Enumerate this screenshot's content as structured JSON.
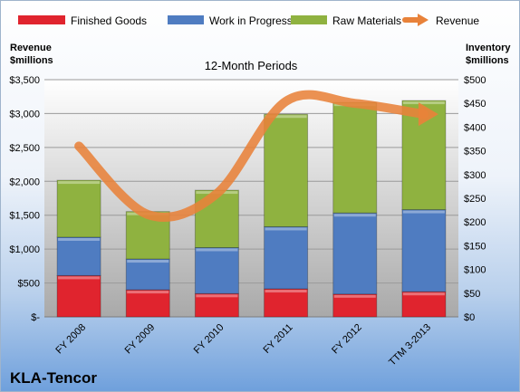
{
  "chart_data": {
    "type": "bar",
    "title": "12-Month Periods",
    "categories": [
      "FY 2008",
      "FY 2009",
      "FY 2010",
      "FY 2011",
      "FY 2012",
      "TTM 3-2013"
    ],
    "stacked": true,
    "left_axis": {
      "label_line1": "Revenue",
      "label_line2": "$millions",
      "ylim": [
        0,
        3500
      ],
      "ticks": [
        "$-",
        "$500",
        "$1,000",
        "$1,500",
        "$2,000",
        "$2,500",
        "$3,000",
        "$3,500"
      ]
    },
    "right_axis": {
      "label_line1": "Inventory",
      "label_line2": "$millions",
      "ylim": [
        0,
        500
      ],
      "ticks": [
        "$0",
        "$50",
        "$100",
        "$150",
        "$200",
        "$250",
        "$300",
        "$350",
        "$400",
        "$450",
        "$500"
      ]
    },
    "series": [
      {
        "name": "Finished Goods",
        "axis": "right",
        "color": "#e0242e",
        "values": [
          87,
          57,
          49,
          59,
          48,
          53
        ]
      },
      {
        "name": "Work in Progress",
        "axis": "right",
        "color": "#4f7cc1",
        "values": [
          81,
          65,
          97,
          131,
          171,
          173
        ]
      },
      {
        "name": "Raw Materials",
        "axis": "right",
        "color": "#8fb240",
        "values": [
          120,
          100,
          121,
          237,
          233,
          230
        ]
      },
      {
        "name": "Revenue",
        "axis": "left",
        "type": "line",
        "color": "#e8823a",
        "values": [
          2520,
          1510,
          1820,
          3180,
          3150,
          2990
        ]
      }
    ],
    "grid": true,
    "legend": "top"
  },
  "brand": "KLA-Tencor"
}
